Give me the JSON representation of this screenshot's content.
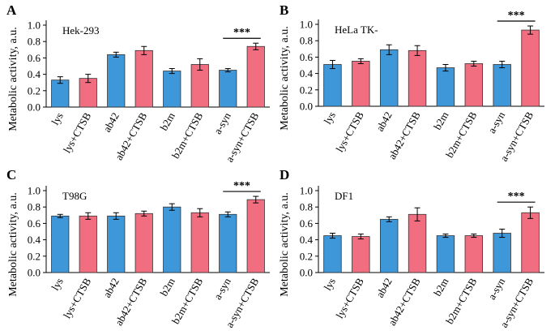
{
  "colors": {
    "blue": "#3d97d8",
    "red": "#f16e80",
    "edge": "#333333",
    "error": "#000000"
  },
  "chart_data": [
    {
      "panel": "A",
      "type": "bar",
      "title": "Hek-293",
      "ylabel": "Metabolic activity, a.u.",
      "ylim": [
        0,
        1.0
      ],
      "yticks": [
        "0.0",
        "0.2",
        "0.4",
        "0.6",
        "0.8",
        "1.0"
      ],
      "categories": [
        "lys",
        "lys+CTSB",
        "ab42",
        "ab42+CTSB",
        "b2m",
        "b2m+CTSB",
        "a-syn",
        "a-syn+CTSB"
      ],
      "values": [
        0.33,
        0.35,
        0.64,
        0.69,
        0.44,
        0.52,
        0.45,
        0.74
      ],
      "errors": [
        0.04,
        0.05,
        0.03,
        0.05,
        0.03,
        0.07,
        0.02,
        0.04
      ],
      "significance": "***"
    },
    {
      "panel": "B",
      "type": "bar",
      "title": "HeLa TK-",
      "ylabel": "Metabolic activity, a.u.",
      "ylim": [
        0,
        1.0
      ],
      "yticks": [
        "0.0",
        "0.2",
        "0.4",
        "0.6",
        "0.8",
        "1.0"
      ],
      "categories": [
        "lys",
        "lys+CTSB",
        "ab42",
        "ab42+CTSB",
        "b2m",
        "b2m+CTSB",
        "a-syn",
        "a-syn+CTSB"
      ],
      "values": [
        0.51,
        0.55,
        0.69,
        0.68,
        0.47,
        0.52,
        0.51,
        0.93
      ],
      "errors": [
        0.05,
        0.03,
        0.06,
        0.06,
        0.04,
        0.03,
        0.04,
        0.05
      ],
      "significance": "***"
    },
    {
      "panel": "C",
      "type": "bar",
      "title": "T98G",
      "ylabel": "Metabolic activity, a.u.",
      "ylim": [
        0,
        1.0
      ],
      "yticks": [
        "0.0",
        "0.2",
        "0.4",
        "0.6",
        "0.8",
        "1.0"
      ],
      "categories": [
        "lys",
        "lys+CTSB",
        "ab42",
        "ab42+CTSB",
        "b2m",
        "b2m+CTSB",
        "a-syn",
        "a-syn+CTSB"
      ],
      "values": [
        0.69,
        0.69,
        0.69,
        0.72,
        0.8,
        0.73,
        0.71,
        0.89
      ],
      "errors": [
        0.02,
        0.04,
        0.04,
        0.03,
        0.04,
        0.05,
        0.03,
        0.04
      ],
      "significance": "***"
    },
    {
      "panel": "D",
      "type": "bar",
      "title": "DF1",
      "ylabel": "Metabolic activity, a.u.",
      "ylim": [
        0,
        1.0
      ],
      "yticks": [
        "0.0",
        "0.2",
        "0.4",
        "0.6",
        "0.8",
        "1.0"
      ],
      "categories": [
        "lys",
        "lys+CTSB",
        "ab42",
        "ab42+CTSB",
        "b2m",
        "b2m+CTSB",
        "a-syn",
        "a-syn+CTSB"
      ],
      "values": [
        0.45,
        0.44,
        0.65,
        0.71,
        0.45,
        0.45,
        0.48,
        0.73
      ],
      "errors": [
        0.03,
        0.03,
        0.03,
        0.08,
        0.02,
        0.02,
        0.05,
        0.07
      ],
      "significance": "***"
    }
  ]
}
